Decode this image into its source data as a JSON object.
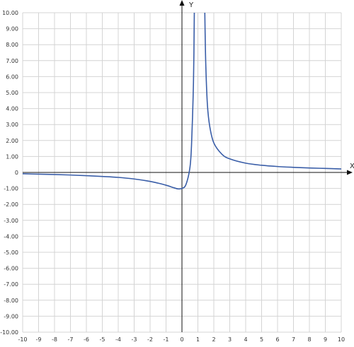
{
  "chart_data": {
    "type": "line",
    "title": "",
    "xlabel": "X",
    "ylabel": "Y",
    "xlim": [
      -10,
      10
    ],
    "ylim": [
      -10,
      10
    ],
    "grid": true,
    "x_ticks": [
      "-10",
      "-9",
      "-8",
      "-7",
      "-6",
      "-5",
      "-4",
      "-3",
      "-2",
      "-1",
      "0",
      "1",
      "2",
      "3",
      "4",
      "5",
      "6",
      "7",
      "8",
      "9",
      "10"
    ],
    "y_ticks": [
      "10.00",
      "9.00",
      "8.00",
      "7.00",
      "6.00",
      "5.00",
      "4.00",
      "3.00",
      "2.00",
      "1.00",
      "0",
      "-1.00",
      "-2.00",
      "-3.00",
      "-4.00",
      "-5.00",
      "-6.00",
      "-7.00",
      "-8.00",
      "-9.00",
      "-10.00"
    ],
    "series": [
      {
        "color": "#3a5ea8",
        "segments": [
          {
            "x": [
              -10,
              -9,
              -8,
              -7,
              -6,
              -5,
              -4,
              -3,
              -2,
              -1.5,
              -1,
              -0.5,
              -0.25,
              0,
              0.25,
              0.5,
              0.6,
              0.7,
              0.75,
              0.8
            ],
            "y": [
              -0.08,
              -0.11,
              -0.13,
              -0.16,
              -0.2,
              -0.25,
              -0.31,
              -0.41,
              -0.56,
              -0.67,
              -0.8,
              -0.96,
              -1.03,
              -1.0,
              -0.76,
              0.3,
              1.7,
              4.7,
              7.4,
              12.8
            ]
          },
          {
            "x": [
              1.4,
              1.45,
              1.5,
              1.6,
              1.75,
              2,
              2.5,
              3,
              4,
              5,
              6,
              7,
              8,
              9,
              10
            ],
            "y": [
              12.5,
              9.0,
              6.6,
              4.2,
              2.85,
              1.85,
              1.15,
              0.85,
              0.58,
              0.45,
              0.37,
              0.32,
              0.28,
              0.25,
              0.22
            ]
          }
        ]
      }
    ]
  }
}
